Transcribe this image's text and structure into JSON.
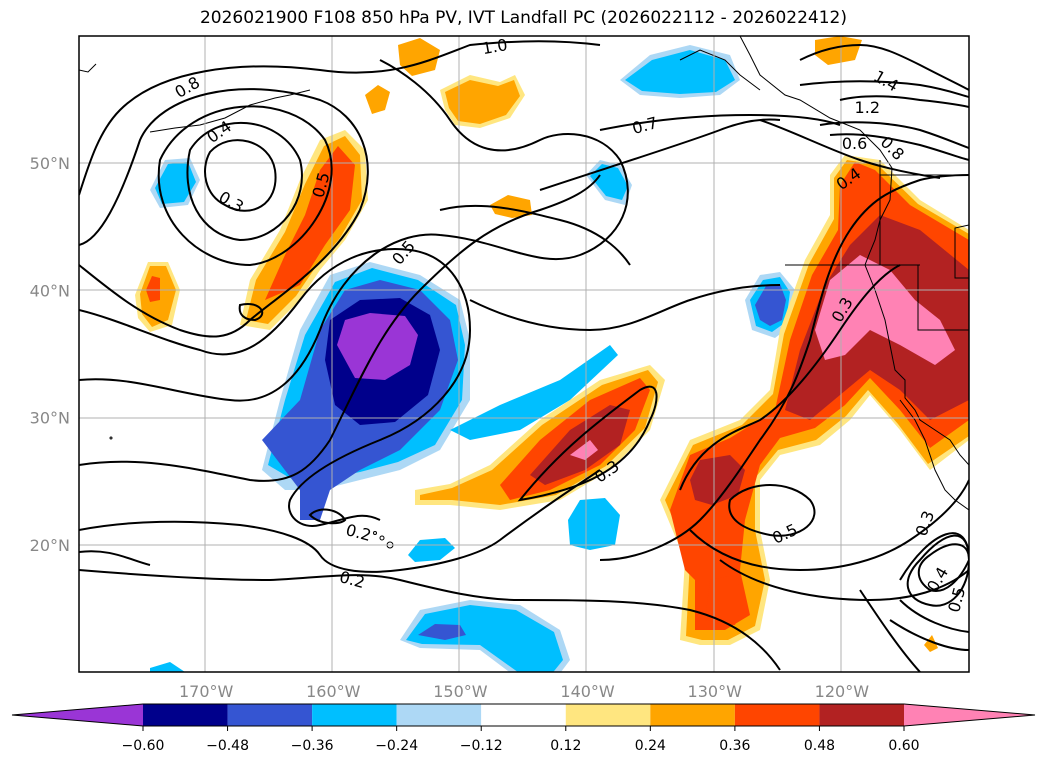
{
  "title": "2026021900 F108 850 hPa PV, IVT Landfall PC (2026022112 - 2026022412)",
  "map": {
    "lon_range": [
      -180,
      -110
    ],
    "lat_range": [
      10,
      60
    ],
    "lon_ticks": [
      {
        "value": -170,
        "label": "170°W"
      },
      {
        "value": -160,
        "label": "160°W"
      },
      {
        "value": -150,
        "label": "150°W"
      },
      {
        "value": -140,
        "label": "140°W"
      },
      {
        "value": -130,
        "label": "130°W"
      },
      {
        "value": -120,
        "label": "120°W"
      }
    ],
    "lat_ticks": [
      {
        "value": 50,
        "label": "50°N"
      },
      {
        "value": 40,
        "label": "40°N"
      },
      {
        "value": 30,
        "label": "30°N"
      },
      {
        "value": 20,
        "label": "20°N"
      }
    ],
    "gridlines": true,
    "contour_labels": [
      {
        "text": "0.8",
        "lon": -171.5,
        "lat": 56.0,
        "rot": -30
      },
      {
        "text": "0.4",
        "lon": -169.0,
        "lat": 52.5,
        "rot": -35
      },
      {
        "text": "0.3",
        "lon": -168.0,
        "lat": 47.0,
        "rot": 30
      },
      {
        "text": "0.5",
        "lon": -161.0,
        "lat": 48.3,
        "rot": -75
      },
      {
        "text": "0.5",
        "lon": -154.5,
        "lat": 43.0,
        "rot": -50
      },
      {
        "text": "1.0",
        "lon": -147.3,
        "lat": 59.2,
        "rot": -10
      },
      {
        "text": "0.7",
        "lon": -135.5,
        "lat": 53.0,
        "rot": -15
      },
      {
        "text": "1.4",
        "lon": -116.5,
        "lat": 56.5,
        "rot": 30
      },
      {
        "text": "1.2",
        "lon": -118.0,
        "lat": 54.4,
        "rot": 0
      },
      {
        "text": "0.6",
        "lon": -119.0,
        "lat": 51.6,
        "rot": 0
      },
      {
        "text": "0.8",
        "lon": -116.0,
        "lat": 51.2,
        "rot": 45
      },
      {
        "text": "0.4",
        "lon": -119.5,
        "lat": 48.8,
        "rot": -35
      },
      {
        "text": "0.3",
        "lon": -120.0,
        "lat": 38.5,
        "rot": -60
      },
      {
        "text": "0.3",
        "lon": -138.5,
        "lat": 25.8,
        "rot": -35
      },
      {
        "text": "0.5",
        "lon": -124.5,
        "lat": 20.9,
        "rot": -25
      },
      {
        "text": "0.3",
        "lon": -113.5,
        "lat": 21.7,
        "rot": -70
      },
      {
        "text": "0.4",
        "lon": -112.5,
        "lat": 17.3,
        "rot": -60
      },
      {
        "text": "0.5",
        "lon": -111.0,
        "lat": 15.7,
        "rot": -75
      },
      {
        "text": "0.2",
        "lon": -158.0,
        "lat": 21.0,
        "rot": 15
      },
      {
        "text": "0.2",
        "lon": -158.5,
        "lat": 17.3,
        "rot": 15
      }
    ]
  },
  "colorbar": {
    "labels": [
      "−0.60",
      "−0.48",
      "−0.36",
      "−0.24",
      "−0.12",
      "0.12",
      "0.24",
      "0.36",
      "0.48",
      "0.60"
    ],
    "colors": [
      "#9a35d6",
      "#00008b",
      "#3555d2",
      "#00bfff",
      "#add8f5",
      "#ffffff",
      "#ffe680",
      "#ffa500",
      "#ff4500",
      "#b22222",
      "#ff82b4",
      "#ff82b4"
    ]
  }
}
